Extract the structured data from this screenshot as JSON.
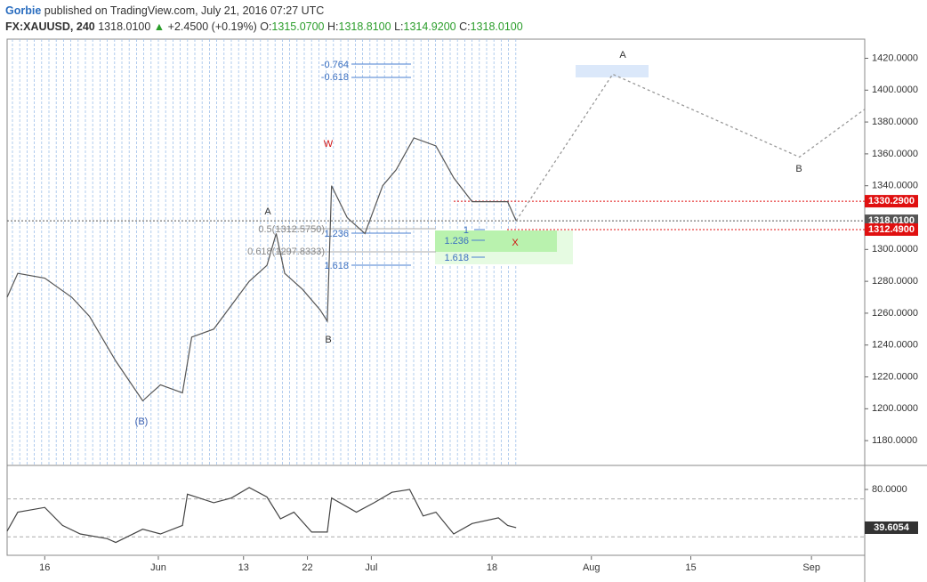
{
  "header": {
    "author": "Gorbie",
    "title": "published on TradingView.com, July 21, 2016 07:27 UTC",
    "symbol": "FX:XAUUSD, 240",
    "last": "1318.0100",
    "change": "+2.4500 (+0.19%)",
    "ohlc": [
      {
        "label": "O:",
        "value": "1315.0700"
      },
      {
        "label": "H:",
        "value": "1318.8100"
      },
      {
        "label": "L:",
        "value": "1314.9200"
      },
      {
        "label": "C:",
        "value": "1318.0100"
      }
    ]
  },
  "chart_data": [
    {
      "type": "line",
      "color": "#555555",
      "xlim": [
        10.7,
        131.5
      ],
      "ylim": [
        1165,
        1432
      ],
      "yticks": [
        {
          "value": 1180,
          "label": "1180.0000"
        },
        {
          "value": 1200,
          "label": "1200.0000"
        },
        {
          "value": 1220,
          "label": "1220.0000"
        },
        {
          "value": 1240,
          "label": "1240.0000"
        },
        {
          "value": 1260,
          "label": "1260.0000"
        },
        {
          "value": 1280,
          "label": "1280.0000"
        },
        {
          "value": 1300,
          "label": "1300.0000"
        },
        {
          "value": 1340,
          "label": "1340.0000"
        },
        {
          "value": 1360,
          "label": "1360.0000"
        },
        {
          "value": 1380,
          "label": "1380.0000"
        },
        {
          "value": 1400,
          "label": "1400.0000"
        },
        {
          "value": 1420,
          "label": "1420.0000"
        }
      ],
      "x": [
        10.7,
        12.2,
        16,
        19.8,
        22.3,
        26,
        29.8,
        32.3,
        35.4,
        36.7,
        39.8,
        42.3,
        44.8,
        47.3,
        48.6,
        49.8,
        52.3,
        54.8,
        55.8,
        56.4,
        58.6,
        61.1,
        63.6,
        65.5,
        68,
        71.1,
        73.6,
        76.2,
        79.9,
        81.2,
        82.4
      ],
      "values": [
        1270,
        1285,
        1282,
        1270,
        1258,
        1230,
        1205,
        1215,
        1210,
        1245,
        1250,
        1265,
        1280,
        1290,
        1310,
        1285,
        1275,
        1262,
        1255,
        1340,
        1320,
        1310,
        1340,
        1350,
        1370,
        1365,
        1345,
        1330,
        1330,
        1330,
        1318.01
      ],
      "projection": {
        "x": [
          82.4,
          96,
          122.3,
          131.5
        ],
        "values": [
          1318.01,
          1410,
          1358,
          1388
        ]
      },
      "levels": [
        {
          "value": 1330.29,
          "label": "1330.2900",
          "color": "#e01010"
        },
        {
          "value": 1318.01,
          "label": "1318.0100",
          "color": "#555555"
        },
        {
          "value": 1312.49,
          "label": "1312.4900",
          "color": "#e01010"
        }
      ],
      "annotations": [
        "-0.764",
        "-0.618",
        "0.5(1312.5750)",
        "1.236",
        "0.618(1297.8333)",
        "1.618",
        "1",
        "1.236",
        "1.618",
        "W",
        "A",
        "B",
        "(B)",
        "X",
        "A",
        "B"
      ]
    },
    {
      "type": "line",
      "color": "#444444",
      "xlim": [
        10.7,
        131.5
      ],
      "ylim": [
        9.5,
        103.5
      ],
      "yticks": [
        {
          "value": 80,
          "label": "80.0000"
        }
      ],
      "xticks": [
        {
          "value": 16,
          "label": "16"
        },
        {
          "value": 32,
          "label": "Jun"
        },
        {
          "value": 44,
          "label": "13"
        },
        {
          "value": 53,
          "label": "22"
        },
        {
          "value": 62,
          "label": "Jul"
        },
        {
          "value": 79,
          "label": "18"
        },
        {
          "value": 93,
          "label": "Aug"
        },
        {
          "value": 107,
          "label": "15"
        },
        {
          "value": 124,
          "label": "Sep"
        }
      ],
      "x": [
        10.7,
        12.2,
        16,
        18.5,
        21,
        24.8,
        26,
        29.8,
        32.3,
        35.4,
        36.1,
        39.8,
        42.3,
        44.8,
        47.3,
        49.2,
        51.1,
        53.6,
        55.8,
        56.4,
        59.9,
        62.4,
        64.9,
        67.4,
        69.3,
        71.1,
        73.6,
        76.2,
        79.9,
        81.2,
        82.4
      ],
      "values": [
        36,
        56,
        61,
        42,
        33,
        28,
        24,
        38,
        33,
        42,
        75,
        66,
        71,
        82,
        72,
        49,
        56,
        35,
        35,
        71,
        56,
        66,
        77,
        80,
        52,
        56,
        33,
        44,
        50,
        42,
        39.6054
      ],
      "value_labels": [
        null,
        null,
        null,
        null,
        null,
        null,
        null,
        null,
        null,
        null,
        null,
        null,
        null,
        null,
        null,
        null,
        null,
        null,
        null,
        null,
        null,
        null,
        null,
        null,
        null,
        null,
        null,
        null,
        null,
        null,
        "39.6054"
      ],
      "bands": [
        70,
        30
      ]
    }
  ]
}
